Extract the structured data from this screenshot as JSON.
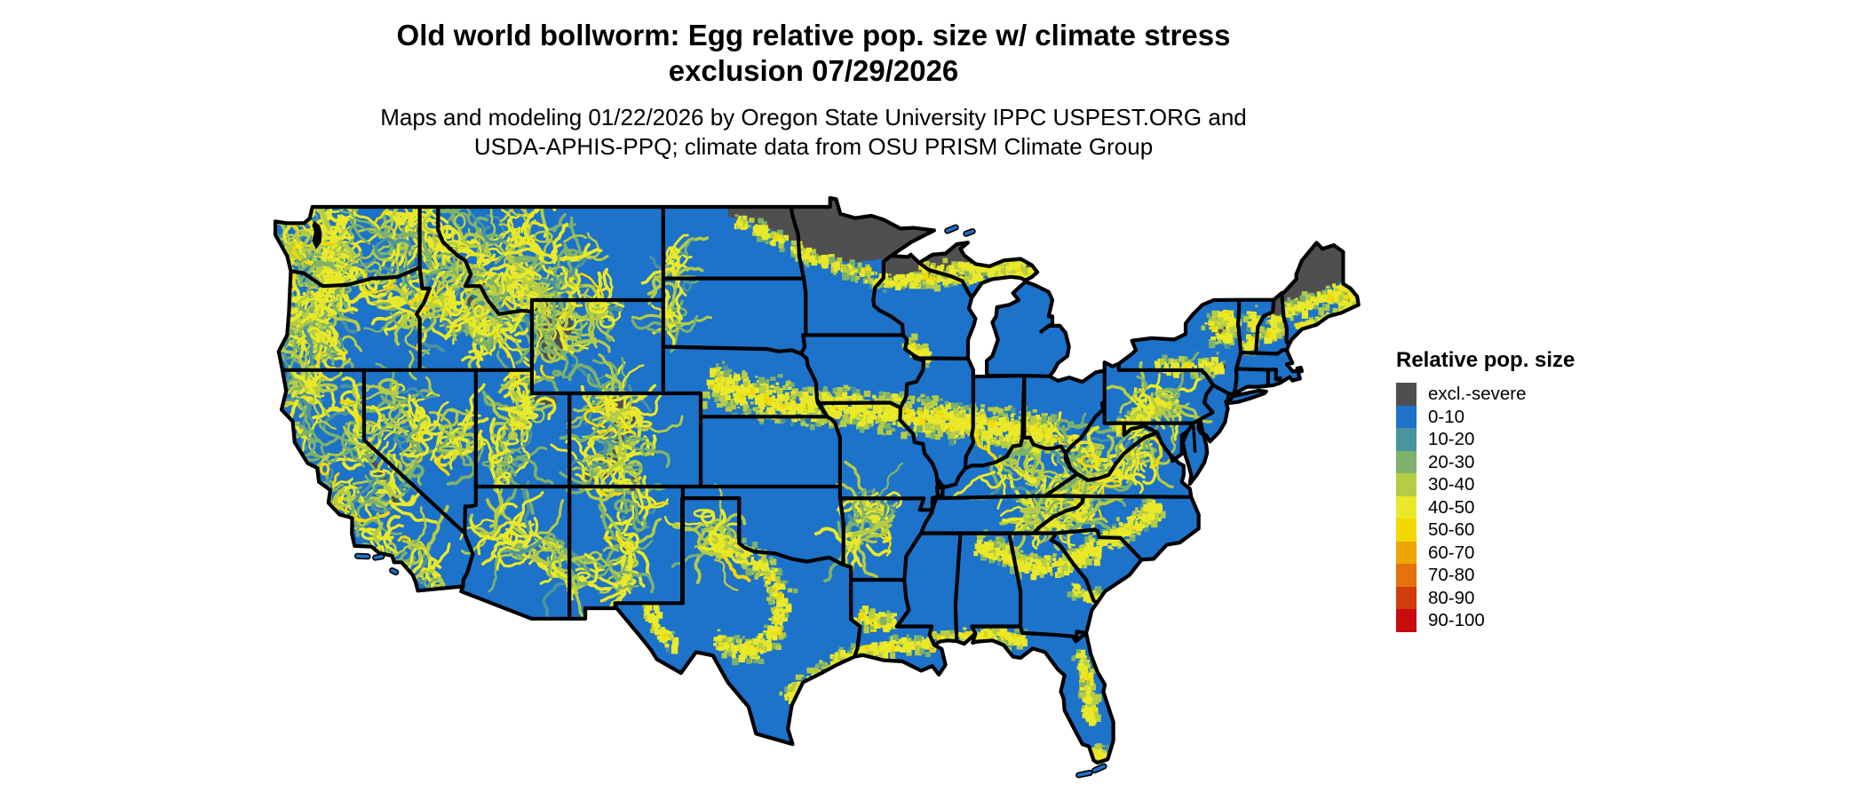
{
  "title": {
    "line1": "Old world bollworm: Egg relative pop. size w/ climate stress",
    "line2": "exclusion 07/29/2026"
  },
  "subtitle": {
    "line1": "Maps and modeling 01/22/2026 by Oregon State University IPPC USPEST.ORG and",
    "line2": "USDA-APHIS-PPQ; climate data from OSU PRISM Climate Group"
  },
  "map": {
    "name": "Contiguous United States relative population size raster map",
    "base_color": "#1d72c9",
    "border_color": "#000000",
    "water_color": "#ffffff",
    "exclusion_color": "#4f4f52",
    "speckle_colors": {
      "teal": "#4b93a0",
      "green": "#7db26c",
      "yellow_green": "#b5cc45",
      "yellow": "#e9e929",
      "gold": "#f4d800"
    }
  },
  "legend": {
    "title": "Relative pop. size",
    "items": [
      {
        "label": "excl.-severe",
        "color": "#4f4f52"
      },
      {
        "label": "0-10",
        "color": "#1d72c9"
      },
      {
        "label": "10-20",
        "color": "#4b93a0"
      },
      {
        "label": "20-30",
        "color": "#7db26c"
      },
      {
        "label": "30-40",
        "color": "#b5cc45"
      },
      {
        "label": "40-50",
        "color": "#e9e929"
      },
      {
        "label": "50-60",
        "color": "#f4d800"
      },
      {
        "label": "60-70",
        "color": "#eda704"
      },
      {
        "label": "70-80",
        "color": "#e5720a"
      },
      {
        "label": "80-90",
        "color": "#d23b0b"
      },
      {
        "label": "90-100",
        "color": "#c80b0f"
      }
    ]
  }
}
